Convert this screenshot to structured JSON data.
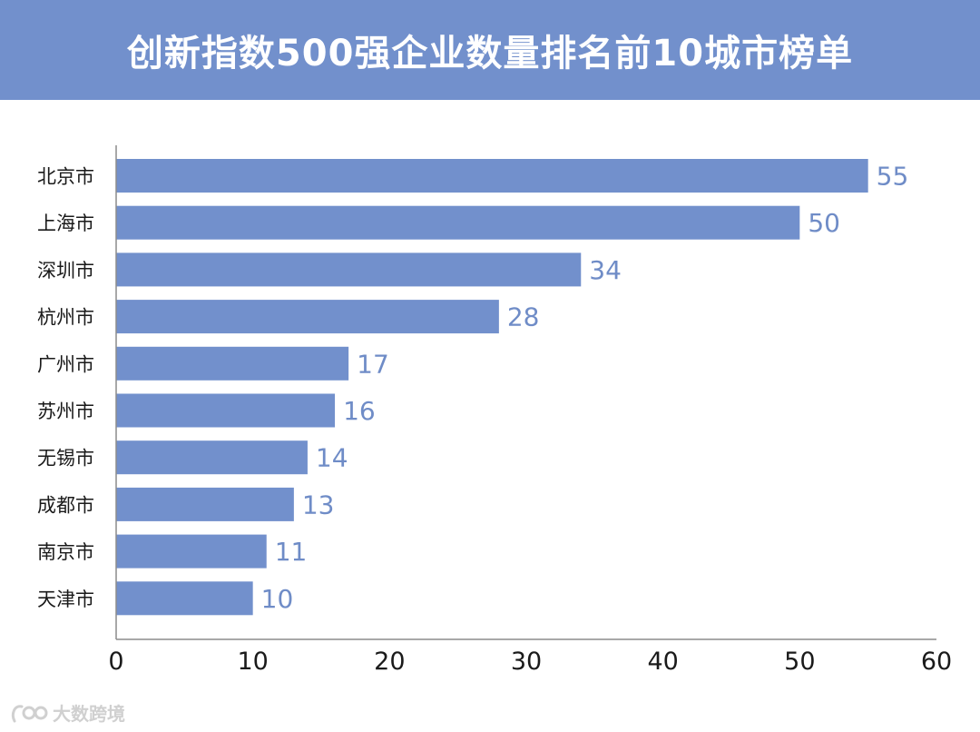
{
  "chart_data": {
    "type": "bar",
    "orientation": "horizontal",
    "title": "创新指数500强企业数量排名前10城市榜单",
    "categories": [
      "北京市",
      "上海市",
      "深圳市",
      "杭州市",
      "广州市",
      "苏州市",
      "无锡市",
      "成都市",
      "南京市",
      "天津市"
    ],
    "values": [
      55,
      50,
      34,
      28,
      17,
      16,
      14,
      13,
      11,
      10
    ],
    "xlim": [
      0,
      60
    ],
    "xticks": [
      0,
      10,
      20,
      30,
      40,
      50,
      60
    ],
    "grid": false,
    "bar_color": "#7290cc",
    "label_color": "#6f8cc7"
  },
  "watermark": "大数跨境"
}
